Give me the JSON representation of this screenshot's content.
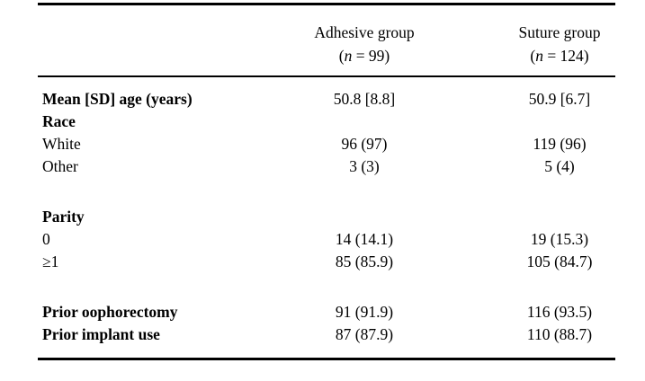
{
  "colors": {
    "text": "#000000",
    "background": "#ffffff",
    "rule": "#000000"
  },
  "table": {
    "header": {
      "columns": [
        {
          "name": "Adhesive group",
          "n_open": "(",
          "n_var": "n",
          "n_rest": " = 99)"
        },
        {
          "name": "Suture group",
          "n_open": "(",
          "n_var": "n",
          "n_rest": " = 124)"
        }
      ]
    },
    "rows": [
      {
        "label": "Mean [SD] age (years)",
        "adhesive": "50.8 [8.8]",
        "suture": "50.9 [6.7]"
      },
      {
        "label": "Race",
        "adhesive": "",
        "suture": ""
      },
      {
        "label": "White",
        "adhesive": "96 (97)",
        "suture": "119 (96)"
      },
      {
        "label": "Other",
        "adhesive": "3 (3)",
        "suture": "5 (4)"
      },
      {
        "label": "Parity",
        "adhesive": "",
        "suture": ""
      },
      {
        "label": "0",
        "adhesive": "14 (14.1)",
        "suture": "19 (15.3)"
      },
      {
        "label": "≥1",
        "adhesive": "85 (85.9)",
        "suture": "105 (84.7)"
      },
      {
        "label": "Prior oophorectomy",
        "adhesive": "91 (91.9)",
        "suture": "116 (93.5)"
      },
      {
        "label": "Prior implant use",
        "adhesive": "87 (87.9)",
        "suture": "110 (88.7)"
      }
    ]
  }
}
